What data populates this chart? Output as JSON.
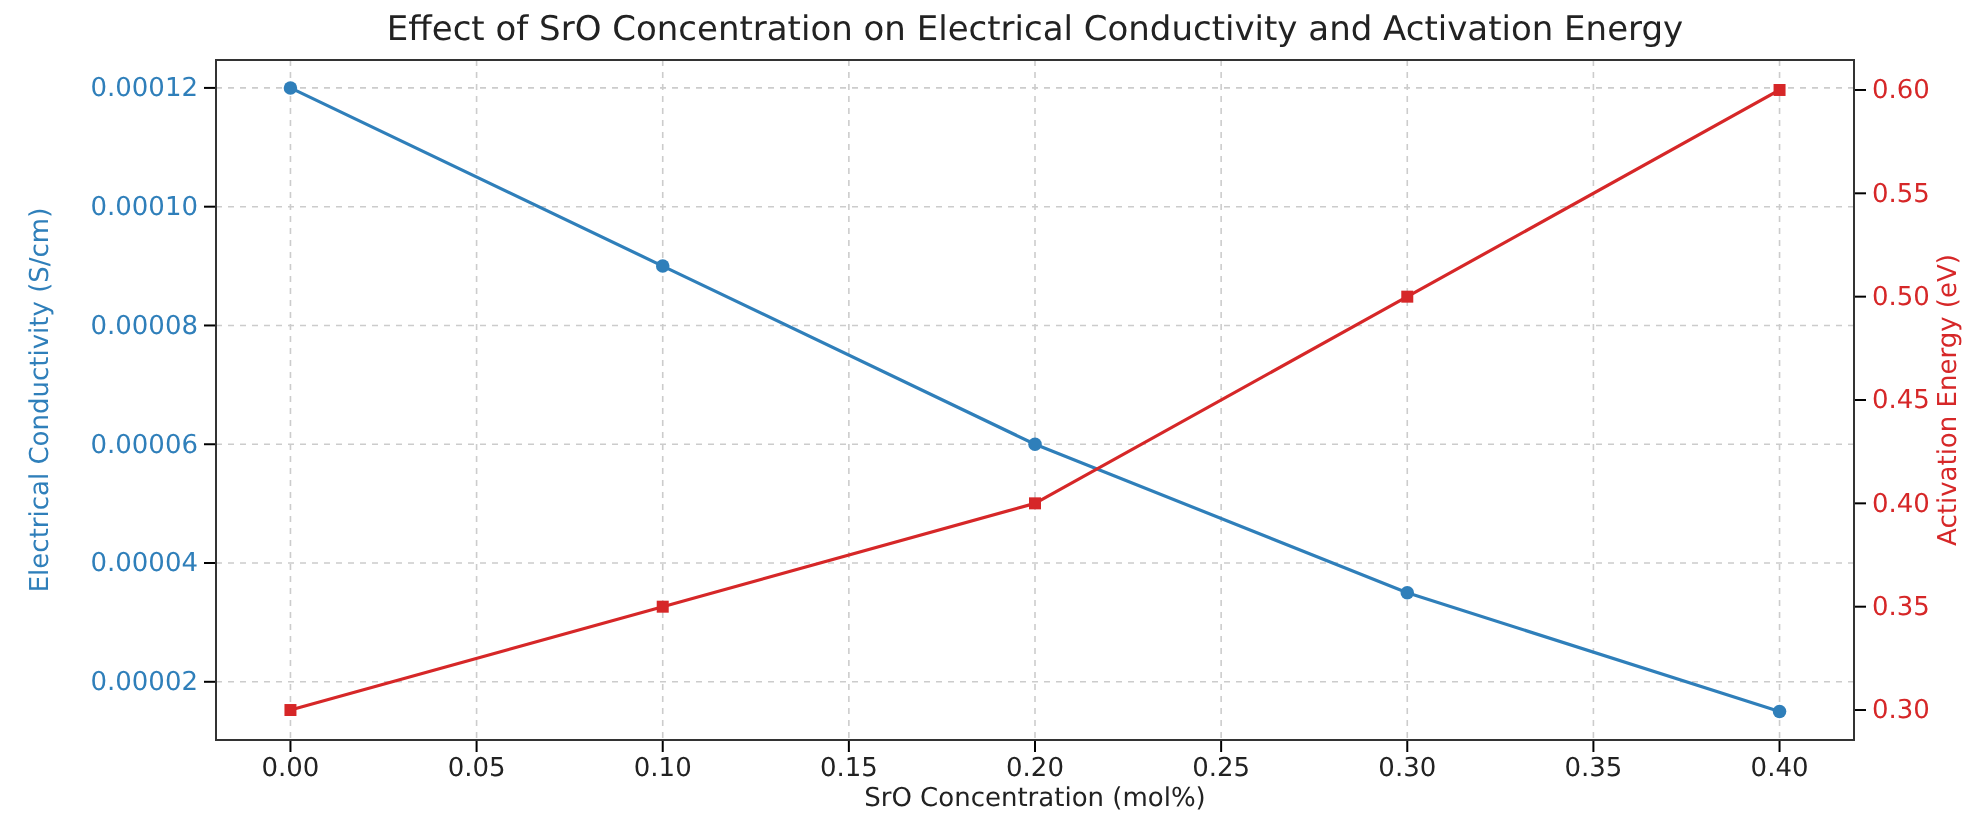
{
  "chart_data": {
    "type": "line",
    "title": "Effect of SrO Concentration on Electrical Conductivity and Activation Energy",
    "xlabel": "SrO Concentration (mol%)",
    "ylabel": "Electrical Conductivity (S/cm)",
    "y2label": "Activation Energy (eV)",
    "x": [
      0,
      0.1,
      0.2,
      0.3,
      0.4
    ],
    "series": [
      {
        "color": "#2f7fba",
        "values": [
          0.00012,
          9e-05,
          6e-05,
          3.5e-05,
          1.5e-05
        ],
        "marker": "circle"
      },
      {
        "color": "#d62728",
        "values": [
          0.3,
          0.35,
          0.4,
          0.5,
          0.6
        ],
        "marker": "square",
        "axis": "y2"
      }
    ],
    "xlim": [
      -0.02,
      0.42
    ],
    "xticks": [
      {
        "value": 0,
        "label": "0.00"
      },
      {
        "value": 0.05,
        "label": "0.05"
      },
      {
        "value": 0.1,
        "label": "0.10"
      },
      {
        "value": 0.15,
        "label": "0.15"
      },
      {
        "value": 0.2,
        "label": "0.20"
      },
      {
        "value": 0.25,
        "label": "0.25"
      },
      {
        "value": 0.3,
        "label": "0.30"
      },
      {
        "value": 0.35,
        "label": "0.35"
      },
      {
        "value": 0.4,
        "label": "0.40"
      }
    ],
    "ylim": [
      1.02e-05,
      0.0001247
    ],
    "yticks": [
      {
        "value": 2e-05,
        "label": "0.00002"
      },
      {
        "value": 4e-05,
        "label": "0.00004"
      },
      {
        "value": 6e-05,
        "label": "0.00006"
      },
      {
        "value": 8e-05,
        "label": "0.00008"
      },
      {
        "value": 0.0001,
        "label": "0.00010"
      },
      {
        "value": 0.00012,
        "label": "0.00012"
      }
    ],
    "y2lim": [
      0.2855,
      0.6145
    ],
    "y2ticks": [
      {
        "value": 0.3,
        "label": "0.30"
      },
      {
        "value": 0.35,
        "label": "0.35"
      },
      {
        "value": 0.4,
        "label": "0.40"
      },
      {
        "value": 0.45,
        "label": "0.45"
      },
      {
        "value": 0.5,
        "label": "0.50"
      },
      {
        "value": 0.55,
        "label": "0.55"
      },
      {
        "value": 0.6,
        "label": "0.60"
      }
    ],
    "grid": true,
    "line_style": "solid"
  }
}
